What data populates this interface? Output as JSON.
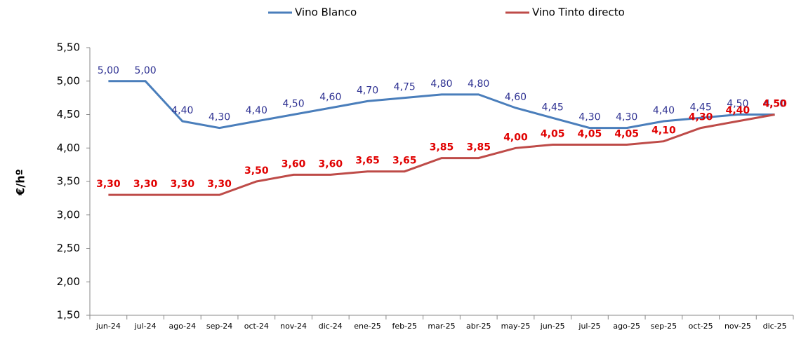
{
  "chart_data": {
    "type": "line",
    "y_label": "€/hº",
    "categories": [
      "jun-24",
      "jul-24",
      "ago-24",
      "sep-24",
      "oct-24",
      "nov-24",
      "dic-24",
      "ene-25",
      "feb-25",
      "mar-25",
      "abr-25",
      "may-25",
      "jun-25",
      "jul-25",
      "ago-25",
      "sep-25",
      "oct-25",
      "nov-25",
      "dic-25"
    ],
    "series": [
      {
        "name": "Vino Blanco",
        "color": "#4a7ebb",
        "label_color": "#2e3192",
        "values": [
          5.0,
          5.0,
          4.4,
          4.3,
          4.4,
          4.5,
          4.6,
          4.7,
          4.75,
          4.8,
          4.8,
          4.6,
          4.45,
          4.3,
          4.3,
          4.4,
          4.45,
          4.5,
          4.5
        ],
        "value_labels": [
          "5,00",
          "5,00",
          "4,40",
          "4,30",
          "4,40",
          "4,50",
          "4,60",
          "4,70",
          "4,75",
          "4,80",
          "4,80",
          "4,60",
          "4,45",
          "4,30",
          "4,30",
          "4,40",
          "4,45",
          "4,50",
          "4,50"
        ]
      },
      {
        "name": "Vino Tinto directo",
        "color": "#be4b48",
        "label_color": "#e00000",
        "values": [
          3.3,
          3.3,
          3.3,
          3.3,
          3.5,
          3.6,
          3.6,
          3.65,
          3.65,
          3.85,
          3.85,
          4.0,
          4.05,
          4.05,
          4.05,
          4.1,
          4.3,
          4.4,
          4.5
        ],
        "value_labels": [
          "3,30",
          "3,30",
          "3,30",
          "3,30",
          "3,50",
          "3,60",
          "3,60",
          "3,65",
          "3,65",
          "3,85",
          "3,85",
          "4,00",
          "4,05",
          "4,05",
          "4,05",
          "4,10",
          "4,30",
          "4,40",
          "4,50"
        ]
      }
    ],
    "ylim": [
      1.5,
      5.5
    ],
    "yticks": [
      {
        "value": 1.5,
        "label": "1,50"
      },
      {
        "value": 2,
        "label": "2,00"
      },
      {
        "value": 2.5,
        "label": "2,50"
      },
      {
        "value": 3,
        "label": "3,00"
      },
      {
        "value": 3.5,
        "label": "3,50"
      },
      {
        "value": 4,
        "label": "4,00"
      },
      {
        "value": 4.5,
        "label": "4,50"
      },
      {
        "value": 5,
        "label": "5,00"
      },
      {
        "value": 5.5,
        "label": "5,50"
      }
    ],
    "legend": "top"
  }
}
